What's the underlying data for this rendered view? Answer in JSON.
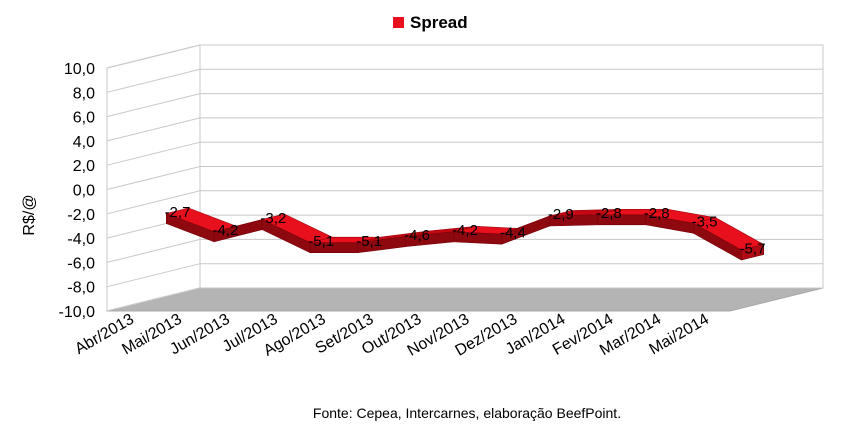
{
  "chart_data": {
    "type": "area",
    "style": "3d-ribbon",
    "legend": {
      "position": "top",
      "entries": [
        {
          "name": "Spread",
          "color": "#e8101c"
        }
      ]
    },
    "ylabel": "R$/@",
    "xlabel": "",
    "ylim": [
      -10,
      10
    ],
    "ytick_step": 2,
    "ytick_labels": [
      "-10,0",
      "-8,0",
      "-6,0",
      "-4,0",
      "-2,0",
      "0,0",
      "2,0",
      "4,0",
      "6,0",
      "8,0",
      "10,0"
    ],
    "grid": true,
    "categories": [
      "Abr/2013",
      "Mai/2013",
      "Jun/2013",
      "Jul/2013",
      "Ago/2013",
      "Set/2013",
      "Out/2013",
      "Nov/2013",
      "Dez/2013",
      "Jan/2014",
      "Fev/2014",
      "Mar/2014",
      "Mai/2014"
    ],
    "series": [
      {
        "name": "Spread",
        "color": "#e8101c",
        "values": [
          -2.7,
          -4.2,
          -3.2,
          -5.1,
          -5.1,
          -4.6,
          -4.2,
          -4.4,
          -2.9,
          -2.8,
          -2.8,
          -3.5,
          -5.7
        ],
        "data_labels": [
          "-2,7",
          "-4,2",
          "-3,2",
          "-5,1",
          "-5,1",
          "-4,6",
          "-4,2",
          "-4,4",
          "-2,9",
          "-2,8",
          "-2,8",
          "-3,5",
          "-5,7"
        ]
      }
    ],
    "source_note": "Fonte: Cepea, Intercarnes, elaboração BeefPoint."
  }
}
